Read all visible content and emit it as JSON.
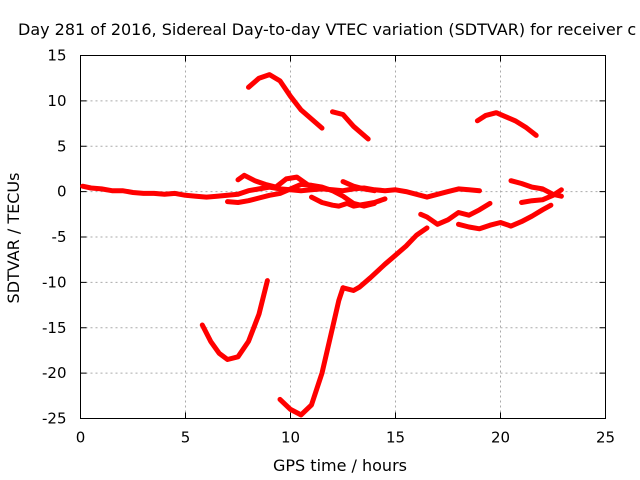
{
  "chart_data": {
    "type": "line",
    "title": "Day 281 of 2016, Sidereal Day-to-day VTEC variation (SDTVAR) for receiver c",
    "xlabel": "GPS time / hours",
    "ylabel": "SDTVAR / TECUs",
    "xlim": [
      0,
      25
    ],
    "ylim": [
      -25,
      15
    ],
    "xticks": [
      0,
      5,
      10,
      15,
      20,
      25
    ],
    "yticks": [
      15,
      10,
      5,
      0,
      -5,
      -10,
      -15,
      -20,
      -25
    ],
    "grid": true,
    "color": "#ff0000",
    "series": [
      {
        "x": [
          0.1,
          0.5,
          1,
          1.5,
          2,
          2.5,
          3,
          3.5,
          4,
          4.5,
          5,
          5.5,
          6,
          6.5,
          7,
          7.5,
          8,
          8.5,
          9,
          9.5,
          10,
          10.5,
          11,
          11.5,
          12,
          12.5,
          13,
          13.5,
          14,
          14.5,
          15,
          15.5,
          16,
          16.5,
          17,
          17.5,
          18,
          18.5,
          19
        ],
        "y": [
          0.6,
          0.4,
          0.3,
          0.1,
          0.1,
          -0.1,
          -0.2,
          -0.2,
          -0.3,
          -0.2,
          -0.4,
          -0.5,
          -0.6,
          -0.5,
          -0.4,
          -0.3,
          0.1,
          0.3,
          0.5,
          0.3,
          0.2,
          0.1,
          0.2,
          0.3,
          0.2,
          0.1,
          0.3,
          0.4,
          0.2,
          0.1,
          0.2,
          0,
          -0.3,
          -0.6,
          -0.3,
          0,
          0.3,
          0.2,
          0.1
        ]
      },
      {
        "x": [
          7,
          7.5,
          8,
          8.5,
          9,
          9.5,
          10,
          10.5,
          11,
          11.5,
          12,
          12.5,
          13,
          13.5,
          14
        ],
        "y": [
          -1.1,
          -1.2,
          -1,
          -0.7,
          -0.4,
          -0.2,
          0.3,
          0.8,
          0.7,
          0.5,
          0.1,
          -0.5,
          -1.3,
          -1.6,
          -1.3
        ]
      },
      {
        "x": [
          7.5,
          7.8,
          8.3,
          8.8,
          9.3,
          9.8,
          10.3,
          10.8
        ],
        "y": [
          1.3,
          1.8,
          1.2,
          0.8,
          0.5,
          1.4,
          1.6,
          0.8
        ]
      },
      {
        "x": [
          11,
          11.5,
          12,
          12.3,
          12.7,
          13,
          13.5,
          14,
          14.5
        ],
        "y": [
          -0.6,
          -1.2,
          -1.5,
          -1.6,
          -1.3,
          -1.6,
          -1.4,
          -1.2,
          -0.8
        ]
      },
      {
        "x": [
          12.5,
          13,
          13.5,
          14
        ],
        "y": [
          1.1,
          0.6,
          0.3,
          0.1
        ]
      },
      {
        "x": [
          5.8,
          6.2,
          6.6,
          7,
          7.5,
          8,
          8.5,
          8.9
        ],
        "y": [
          -14.7,
          -16.5,
          -17.8,
          -18.5,
          -18.2,
          -16.5,
          -13.5,
          -9.8
        ]
      },
      {
        "x": [
          9.5,
          10,
          10.5,
          11,
          11.5,
          12,
          12.3,
          12.5
        ],
        "y": [
          -22.9,
          -24,
          -24.6,
          -23.5,
          -20,
          -15,
          -12,
          -10.6
        ]
      },
      {
        "x": [
          12.5,
          13,
          13.3,
          13.8,
          14.5,
          15,
          15.5,
          16,
          16.5
        ],
        "y": [
          -10.6,
          -10.9,
          -10.5,
          -9.5,
          -8,
          -7,
          -6,
          -4.8,
          -4
        ]
      },
      {
        "x": [
          16.2,
          16.5,
          17,
          17.5,
          18,
          18.5,
          19,
          19.5
        ],
        "y": [
          -2.5,
          -2.8,
          -3.6,
          -3.1,
          -2.3,
          -2.6,
          -2,
          -1.3
        ]
      },
      {
        "x": [
          18,
          18.5,
          19,
          19.5,
          20,
          20.5,
          21,
          21.5,
          22,
          22.4
        ],
        "y": [
          -3.6,
          -3.9,
          -4.1,
          -3.7,
          -3.4,
          -3.8,
          -3.3,
          -2.7,
          -2,
          -1.5
        ]
      },
      {
        "x": [
          20.5,
          21,
          21.5,
          22,
          22.5,
          22.9
        ],
        "y": [
          1.2,
          0.9,
          0.5,
          0.3,
          -0.3,
          -0.5
        ]
      },
      {
        "x": [
          21,
          21.5,
          22,
          22.5,
          22.9
        ],
        "y": [
          -1.2,
          -1,
          -0.9,
          -0.4,
          0.2
        ]
      },
      {
        "x": [
          8,
          8.5,
          9,
          9.5,
          10,
          10.5,
          11,
          11.5
        ],
        "y": [
          11.5,
          12.5,
          12.9,
          12.2,
          10.5,
          9,
          8,
          7
        ]
      },
      {
        "x": [
          12,
          12.5,
          13,
          13.7
        ],
        "y": [
          8.8,
          8.5,
          7.2,
          5.8
        ]
      },
      {
        "x": [
          18.9,
          19.3,
          19.8,
          20.2,
          20.7,
          21.2,
          21.7
        ],
        "y": [
          7.8,
          8.4,
          8.7,
          8.3,
          7.8,
          7.1,
          6.2
        ]
      }
    ]
  }
}
